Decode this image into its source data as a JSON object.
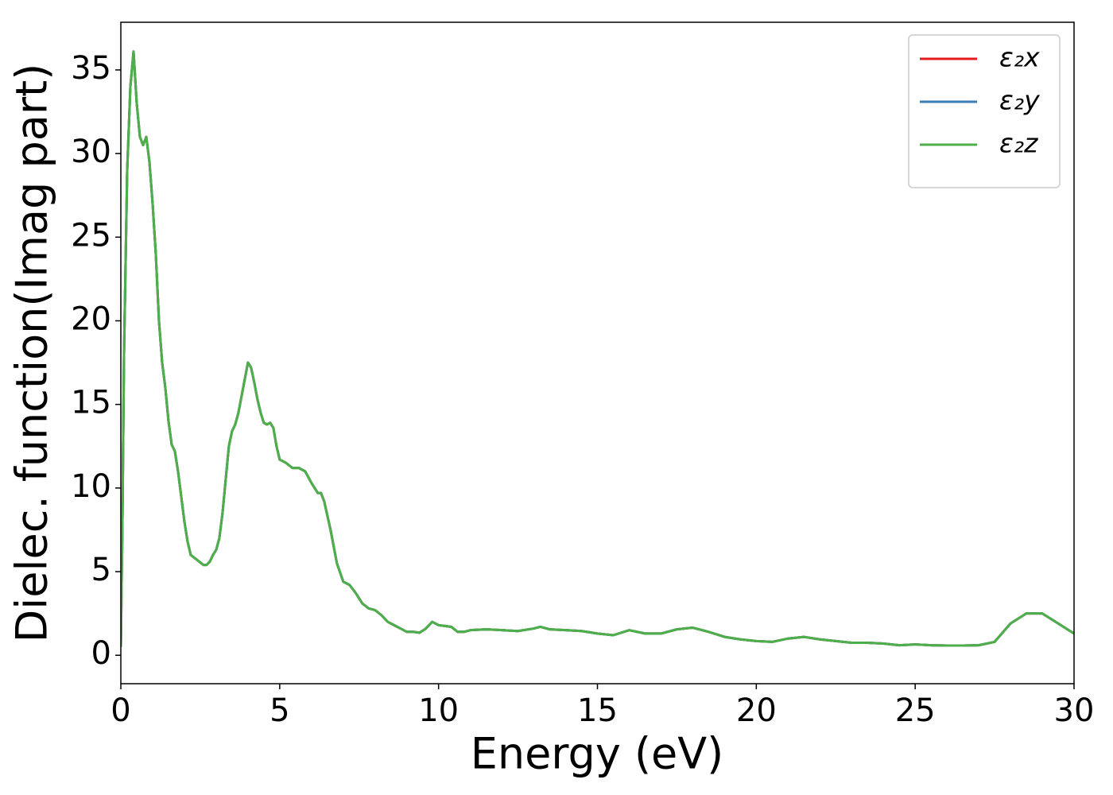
{
  "chart_data": {
    "type": "line",
    "x_label": "Energy (eV)",
    "y_label": "Dielec. function(Imag part)",
    "x": [
      0,
      0.05,
      0.1,
      0.2,
      0.3,
      0.4,
      0.5,
      0.6,
      0.7,
      0.8,
      0.9,
      1.0,
      1.1,
      1.2,
      1.3,
      1.4,
      1.5,
      1.6,
      1.7,
      1.8,
      1.9,
      2.0,
      2.1,
      2.2,
      2.4,
      2.6,
      2.7,
      2.8,
      2.9,
      3.0,
      3.1,
      3.2,
      3.3,
      3.4,
      3.5,
      3.6,
      3.7,
      3.8,
      3.9,
      4.0,
      4.1,
      4.2,
      4.3,
      4.4,
      4.5,
      4.6,
      4.7,
      4.8,
      4.9,
      5.0,
      5.2,
      5.4,
      5.6,
      5.8,
      6.0,
      6.2,
      6.3,
      6.4,
      6.6,
      6.8,
      7.0,
      7.2,
      7.4,
      7.6,
      7.8,
      8.0,
      8.2,
      8.4,
      8.6,
      8.8,
      9.0,
      9.2,
      9.4,
      9.6,
      9.8,
      10.0,
      10.2,
      10.4,
      10.6,
      10.8,
      11.0,
      11.5,
      12.0,
      12.5,
      13.0,
      13.2,
      13.5,
      14.0,
      14.5,
      15.0,
      15.5,
      16.0,
      16.5,
      17.0,
      17.5,
      18.0,
      18.5,
      19.0,
      19.5,
      20.0,
      20.5,
      21.0,
      21.5,
      22.0,
      22.5,
      23.0,
      23.5,
      24.0,
      24.5,
      25.0,
      25.5,
      26.0,
      26.5,
      27.0,
      27.5,
      28.0,
      28.5,
      29.0,
      29.5,
      30.0
    ],
    "series": [
      {
        "name": "ε₂x",
        "color": "#e41a1c",
        "values": [
          0.5,
          8,
          18,
          29,
          34,
          36.1,
          33,
          31,
          30.5,
          31,
          29.5,
          27,
          24,
          20,
          17.5,
          16,
          14,
          12.6,
          12.2,
          11,
          9.5,
          8,
          6.8,
          6,
          5.7,
          5.4,
          5.4,
          5.6,
          6,
          6.3,
          7,
          8.5,
          10.5,
          12.5,
          13.4,
          13.8,
          14.5,
          15.5,
          16.5,
          17.5,
          17.2,
          16.3,
          15.3,
          14.5,
          13.9,
          13.8,
          13.9,
          13.6,
          12.5,
          11.7,
          11.5,
          11.2,
          11.2,
          11.0,
          10.3,
          9.7,
          9.7,
          9.2,
          7.5,
          5.5,
          4.4,
          4.2,
          3.7,
          3.1,
          2.8,
          2.7,
          2.4,
          2.0,
          1.8,
          1.6,
          1.4,
          1.4,
          1.35,
          1.6,
          2.0,
          1.8,
          1.75,
          1.7,
          1.4,
          1.4,
          1.5,
          1.55,
          1.5,
          1.45,
          1.6,
          1.7,
          1.55,
          1.5,
          1.45,
          1.3,
          1.2,
          1.5,
          1.3,
          1.3,
          1.55,
          1.65,
          1.4,
          1.1,
          0.95,
          0.85,
          0.8,
          1.0,
          1.1,
          0.95,
          0.85,
          0.75,
          0.75,
          0.7,
          0.6,
          0.65,
          0.6,
          0.58,
          0.58,
          0.6,
          0.8,
          1.9,
          2.5,
          2.5,
          1.9,
          1.3
        ]
      },
      {
        "name": "ε₂y",
        "color": "#377eb8",
        "values": [
          0.5,
          8,
          18,
          29,
          34,
          36.1,
          33,
          31,
          30.5,
          31,
          29.5,
          27,
          24,
          20,
          17.5,
          16,
          14,
          12.6,
          12.2,
          11,
          9.5,
          8,
          6.8,
          6,
          5.7,
          5.4,
          5.4,
          5.6,
          6,
          6.3,
          7,
          8.5,
          10.5,
          12.5,
          13.4,
          13.8,
          14.5,
          15.5,
          16.5,
          17.5,
          17.2,
          16.3,
          15.3,
          14.5,
          13.9,
          13.8,
          13.9,
          13.6,
          12.5,
          11.7,
          11.5,
          11.2,
          11.2,
          11.0,
          10.3,
          9.7,
          9.7,
          9.2,
          7.5,
          5.5,
          4.4,
          4.2,
          3.7,
          3.1,
          2.8,
          2.7,
          2.4,
          2.0,
          1.8,
          1.6,
          1.4,
          1.4,
          1.35,
          1.6,
          2.0,
          1.8,
          1.75,
          1.7,
          1.4,
          1.4,
          1.5,
          1.55,
          1.5,
          1.45,
          1.6,
          1.7,
          1.55,
          1.5,
          1.45,
          1.3,
          1.2,
          1.5,
          1.3,
          1.3,
          1.55,
          1.65,
          1.4,
          1.1,
          0.95,
          0.85,
          0.8,
          1.0,
          1.1,
          0.95,
          0.85,
          0.75,
          0.75,
          0.7,
          0.6,
          0.65,
          0.6,
          0.58,
          0.58,
          0.6,
          0.8,
          1.9,
          2.5,
          2.5,
          1.9,
          1.3
        ]
      },
      {
        "name": "ε₂z",
        "color": "#4daf4a",
        "values": [
          0.5,
          8,
          18,
          29,
          34,
          36.1,
          33,
          31,
          30.5,
          31,
          29.5,
          27,
          24,
          20,
          17.5,
          16,
          14,
          12.6,
          12.2,
          11,
          9.5,
          8,
          6.8,
          6,
          5.7,
          5.4,
          5.4,
          5.6,
          6,
          6.3,
          7,
          8.5,
          10.5,
          12.5,
          13.4,
          13.8,
          14.5,
          15.5,
          16.5,
          17.5,
          17.2,
          16.3,
          15.3,
          14.5,
          13.9,
          13.8,
          13.9,
          13.6,
          12.5,
          11.7,
          11.5,
          11.2,
          11.2,
          11.0,
          10.3,
          9.7,
          9.7,
          9.2,
          7.5,
          5.5,
          4.4,
          4.2,
          3.7,
          3.1,
          2.8,
          2.7,
          2.4,
          2.0,
          1.8,
          1.6,
          1.4,
          1.4,
          1.35,
          1.6,
          2.0,
          1.8,
          1.75,
          1.7,
          1.4,
          1.4,
          1.5,
          1.55,
          1.5,
          1.45,
          1.6,
          1.7,
          1.55,
          1.5,
          1.45,
          1.3,
          1.2,
          1.5,
          1.3,
          1.3,
          1.55,
          1.65,
          1.4,
          1.1,
          0.95,
          0.85,
          0.8,
          1.0,
          1.1,
          0.95,
          0.85,
          0.75,
          0.75,
          0.7,
          0.6,
          0.65,
          0.6,
          0.58,
          0.58,
          0.6,
          0.8,
          1.9,
          2.5,
          2.5,
          1.9,
          1.3
        ]
      }
    ],
    "xlim": [
      0,
      30
    ],
    "xticks": [
      0,
      5,
      10,
      15,
      20,
      25,
      30
    ],
    "ylim": [
      -1.7,
      37.85
    ],
    "yticks": [
      0,
      5,
      10,
      15,
      20,
      25,
      30,
      35
    ],
    "grid": false,
    "legend": "upper right"
  }
}
